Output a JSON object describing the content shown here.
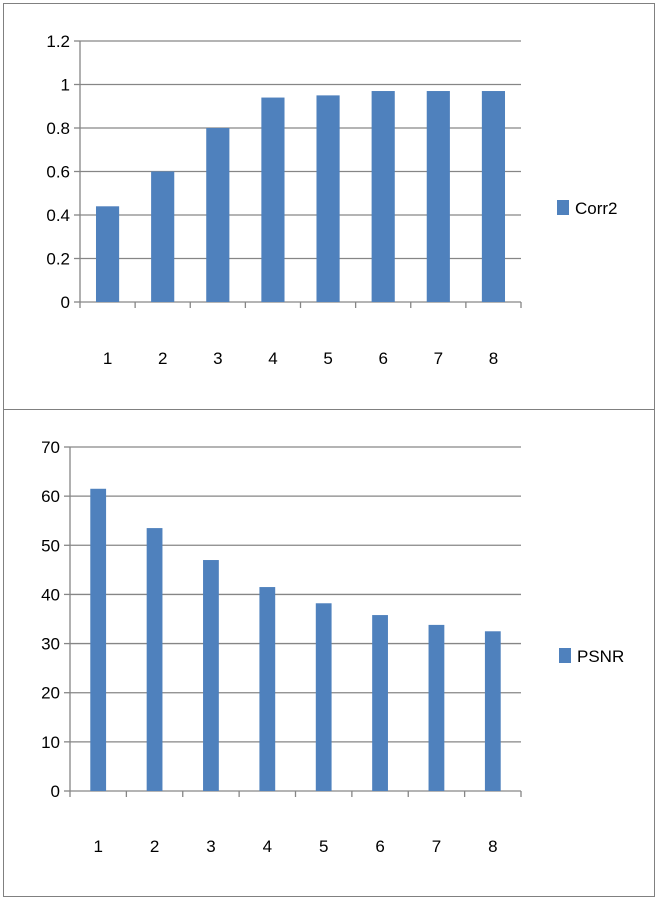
{
  "chart_data": [
    {
      "type": "bar",
      "title": "",
      "xlabel": "",
      "ylabel": "",
      "categories": [
        "1",
        "2",
        "3",
        "4",
        "5",
        "6",
        "7",
        "8"
      ],
      "series": [
        {
          "name": "Corr2",
          "values": [
            0.44,
            0.6,
            0.8,
            0.94,
            0.95,
            0.97,
            0.97,
            0.97
          ]
        }
      ],
      "ylim": [
        0,
        1.2
      ],
      "yticks": [
        "0",
        "0.2",
        "0.4",
        "0.6",
        "0.8",
        "1",
        "1.2"
      ],
      "grid": true,
      "legend_position": "right",
      "bar_color": "#4F81BD"
    },
    {
      "type": "bar",
      "title": "",
      "xlabel": "",
      "ylabel": "",
      "categories": [
        "1",
        "2",
        "3",
        "4",
        "5",
        "6",
        "7",
        "8"
      ],
      "series": [
        {
          "name": "PSNR",
          "values": [
            61.5,
            53.5,
            47,
            41.5,
            38.2,
            35.8,
            33.8,
            32.5
          ]
        }
      ],
      "ylim": [
        0,
        70
      ],
      "yticks": [
        "0",
        "10",
        "20",
        "30",
        "40",
        "50",
        "60",
        "70"
      ],
      "grid": true,
      "legend_position": "right",
      "bar_color": "#4F81BD"
    }
  ]
}
